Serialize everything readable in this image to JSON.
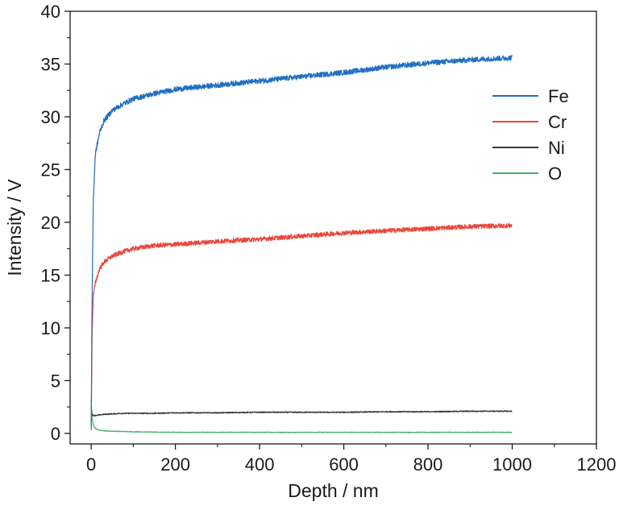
{
  "chart_data": {
    "type": "line",
    "title": "",
    "xlabel": "Depth / nm",
    "ylabel": "Intensity / V",
    "xlim": [
      -50,
      1200
    ],
    "ylim": [
      -1,
      40
    ],
    "xticks": [
      0,
      200,
      400,
      600,
      800,
      1000,
      1200
    ],
    "xtick_labels": [
      "0",
      "200",
      "400",
      "600",
      "800",
      "1000",
      "1200"
    ],
    "yticks": [
      0,
      5,
      10,
      15,
      20,
      25,
      30,
      35,
      40
    ],
    "ytick_labels": [
      "0",
      "5",
      "10",
      "15",
      "20",
      "25",
      "30",
      "35",
      "40"
    ],
    "grid": false,
    "legend_position": "right",
    "x": [
      0,
      2,
      5,
      10,
      20,
      30,
      50,
      75,
      100,
      150,
      200,
      300,
      400,
      500,
      600,
      700,
      800,
      900,
      1000
    ],
    "series": [
      {
        "name": "Fe",
        "color": "#1f6fc0",
        "noise": 0.25,
        "values": [
          0.5,
          12,
          22,
          26.5,
          28.5,
          29.6,
          30.6,
          31.2,
          31.7,
          32.2,
          32.6,
          33.0,
          33.4,
          33.8,
          34.2,
          34.7,
          35.1,
          35.4,
          35.6
        ]
      },
      {
        "name": "Cr",
        "color": "#e8473b",
        "noise": 0.22,
        "values": [
          0.3,
          9,
          13.0,
          14.3,
          15.6,
          16.2,
          16.8,
          17.2,
          17.5,
          17.8,
          17.9,
          18.2,
          18.4,
          18.7,
          19.0,
          19.2,
          19.4,
          19.6,
          19.7
        ]
      },
      {
        "name": "Ni",
        "color": "#3a3a3a",
        "noise": 0.05,
        "values": [
          2.5,
          1.8,
          1.7,
          1.7,
          1.75,
          1.8,
          1.85,
          1.9,
          1.9,
          1.9,
          1.95,
          1.95,
          2.0,
          2.0,
          2.0,
          2.05,
          2.05,
          2.1,
          2.1
        ]
      },
      {
        "name": "O",
        "color": "#3fb070",
        "noise": 0.03,
        "values": [
          3.2,
          1.5,
          0.8,
          0.45,
          0.3,
          0.25,
          0.2,
          0.18,
          0.15,
          0.12,
          0.1,
          0.1,
          0.1,
          0.1,
          0.1,
          0.1,
          0.1,
          0.1,
          0.1
        ]
      }
    ]
  }
}
